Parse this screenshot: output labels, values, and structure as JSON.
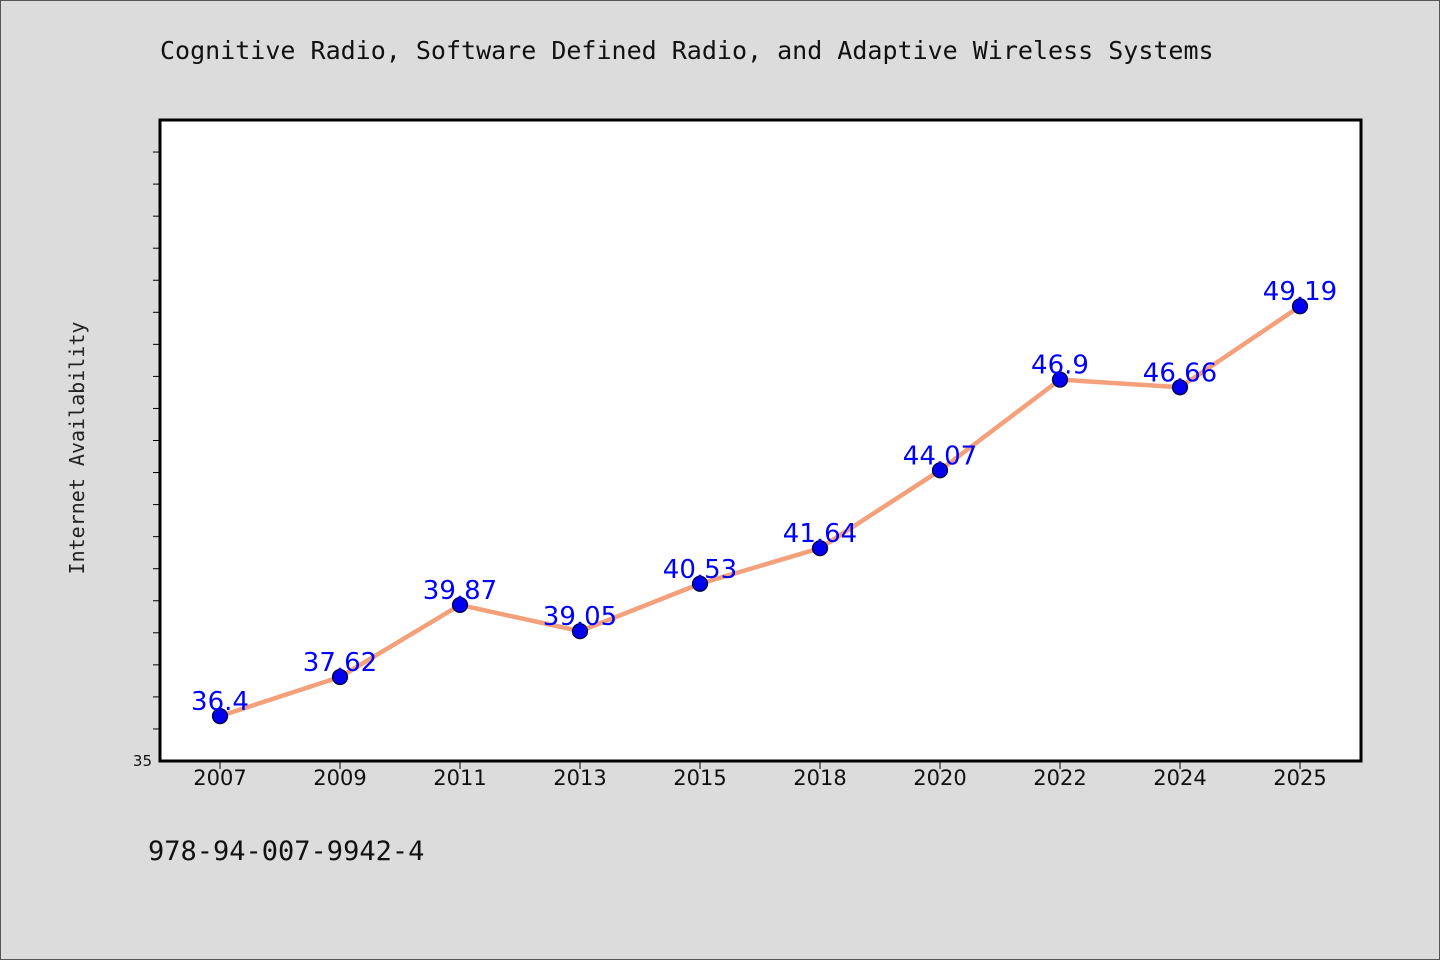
{
  "chart_data": {
    "type": "line",
    "title": "Cognitive Radio, Software Defined Radio, and Adaptive Wireless Systems",
    "xlabel": "",
    "ylabel": "Internet Availability",
    "categories": [
      "2007",
      "2009",
      "2011",
      "2013",
      "2015",
      "2018",
      "2020",
      "2022",
      "2024",
      "2025"
    ],
    "series": [
      {
        "values": [
          36.4,
          37.62,
          39.87,
          39.05,
          40.53,
          41.64,
          44.07,
          46.9,
          46.66,
          49.19
        ]
      }
    ],
    "data_labels": [
      "36.4",
      "37.62",
      "39.87",
      "39.05",
      "40.53",
      "41.64",
      "44.07",
      "46.9",
      "46.66",
      "49.19"
    ],
    "ylim": [
      35,
      55
    ],
    "y_tick_labels": [
      "35"
    ],
    "grid": false,
    "legend": "none",
    "colors": {
      "line": "#f4a07a",
      "marker": "#0000ee",
      "data_label": "#0000ff",
      "plot_bg": "#ffffff",
      "page_bg": "#dcdcdc"
    }
  },
  "footer": {
    "text": "978-94-007-9942-4"
  }
}
